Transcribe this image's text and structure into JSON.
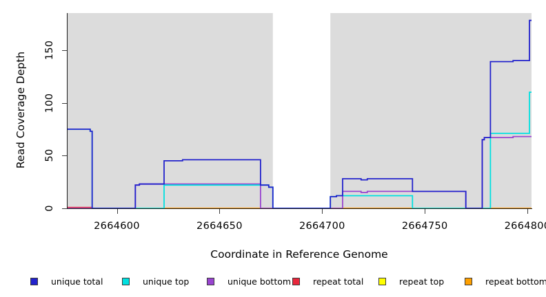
{
  "figure": {
    "y_axis": {
      "title": "Read Coverage Depth",
      "ticks": [
        "0",
        "50",
        "100",
        "150"
      ],
      "tick_values": [
        0,
        50,
        100,
        150
      ]
    },
    "x_axis": {
      "title": "Coordinate in Reference Genome",
      "ticks": [
        "2664600",
        "2664650",
        "2664700",
        "2664750",
        "2664800"
      ],
      "tick_values": [
        2664600,
        2664650,
        2664700,
        2664750,
        2664800
      ]
    },
    "legend": [
      {
        "label": "unique total"
      },
      {
        "label": "unique top"
      },
      {
        "label": "unique bottom"
      },
      {
        "label": "repeat total"
      },
      {
        "label": "repeat top"
      },
      {
        "label": "repeat bottom"
      }
    ]
  },
  "chart_data": {
    "type": "line",
    "subtype": "step-coverage",
    "title": "",
    "xlabel": "Coordinate in Reference Genome",
    "ylabel": "Read Coverage Depth",
    "xlim": [
      2664576,
      2664802
    ],
    "ylim": [
      0,
      185
    ],
    "x_ticks": [
      2664600,
      2664650,
      2664700,
      2664750,
      2664800
    ],
    "y_ticks": [
      0,
      50,
      100,
      150
    ],
    "grid": false,
    "legend_position": "bottom",
    "panel_background": "#DCDCDC",
    "highlight_band": {
      "from": 2664676,
      "to": 2664704,
      "color": "#FFFFFF"
    },
    "series_note": "step functions; each point is [start_coordinate, depth] holding until next breakpoint; array order = draw order (last on top)",
    "series": [
      {
        "name": "repeat top",
        "color": "#FFFF00",
        "points": [
          [
            2664576,
            0
          ]
        ]
      },
      {
        "name": "repeat total",
        "color": "#E8273C",
        "points": [
          [
            2664576,
            0.8
          ],
          [
            2664588,
            0
          ]
        ]
      },
      {
        "name": "repeat bottom",
        "color": "#FFA000",
        "points": [
          [
            2664576,
            0
          ]
        ]
      },
      {
        "name": "unique bottom",
        "color": "#9944D0",
        "points": [
          [
            2664576,
            0
          ],
          [
            2664609,
            22
          ],
          [
            2664611,
            23
          ],
          [
            2664670,
            0
          ],
          [
            2664710,
            16
          ],
          [
            2664719,
            15
          ],
          [
            2664722,
            16
          ],
          [
            2664770,
            0
          ],
          [
            2664778,
            65
          ],
          [
            2664779,
            67
          ],
          [
            2664793,
            68
          ]
        ]
      },
      {
        "name": "unique top",
        "color": "#00E0E0",
        "points": [
          [
            2664576,
            75
          ],
          [
            2664587,
            73
          ],
          [
            2664588,
            0
          ],
          [
            2664623,
            22
          ],
          [
            2664674,
            20
          ],
          [
            2664676,
            0
          ],
          [
            2664704,
            11
          ],
          [
            2664707,
            12
          ],
          [
            2664744,
            0
          ],
          [
            2664782,
            71
          ],
          [
            2664801,
            110
          ]
        ]
      },
      {
        "name": "unique total",
        "color": "#2222CC",
        "points": [
          [
            2664576,
            75
          ],
          [
            2664587,
            73
          ],
          [
            2664588,
            0
          ],
          [
            2664609,
            22
          ],
          [
            2664611,
            23
          ],
          [
            2664623,
            45
          ],
          [
            2664632,
            46
          ],
          [
            2664670,
            22
          ],
          [
            2664674,
            20
          ],
          [
            2664676,
            0
          ],
          [
            2664704,
            11
          ],
          [
            2664707,
            12
          ],
          [
            2664710,
            28
          ],
          [
            2664719,
            27
          ],
          [
            2664722,
            28
          ],
          [
            2664744,
            16
          ],
          [
            2664770,
            0
          ],
          [
            2664778,
            65
          ],
          [
            2664779,
            67
          ],
          [
            2664782,
            139
          ],
          [
            2664793,
            140
          ],
          [
            2664801,
            178
          ]
        ]
      }
    ]
  }
}
